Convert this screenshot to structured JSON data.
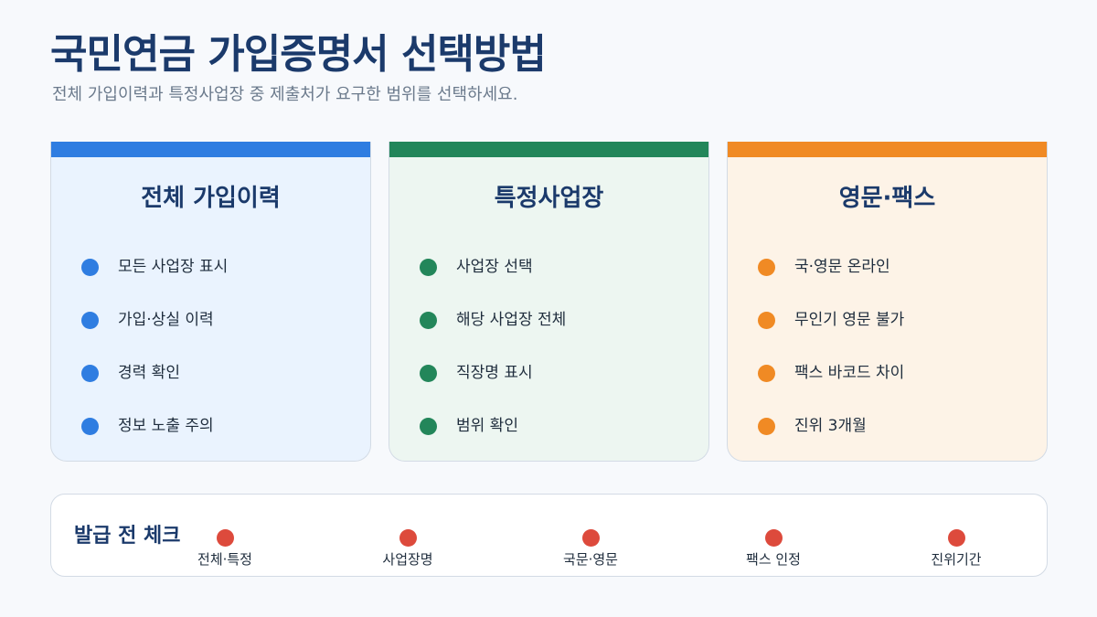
{
  "title": "국민연금 가입증명서 선택방법",
  "subtitle": "전체 가입이력과 특정사업장 중 제출처가 요구한 범위를 선택하세요.",
  "colors": {
    "blue": "#2f7de1",
    "green": "#23865a",
    "orange": "#f08a24",
    "red": "#dd4a3c",
    "blue_bg": "#eaf3fe",
    "green_bg": "#edf6f1",
    "orange_bg": "#fdf3e7"
  },
  "cards": [
    {
      "title": "전체 가입이력",
      "items": [
        "모든 사업장 표시",
        "가입·상실 이력",
        "경력 확인",
        "정보 노출 주의"
      ]
    },
    {
      "title": "특정사업장",
      "items": [
        "사업장 선택",
        "해당 사업장 전체",
        "직장명 표시",
        "범위 확인"
      ]
    },
    {
      "title": "영문·팩스",
      "items": [
        "국·영문 온라인",
        "무인기 영문 불가",
        "팩스 바코드 차이",
        "진위 3개월"
      ]
    }
  ],
  "checklist": {
    "title": "발급 전 체크",
    "steps": [
      "전체·특정",
      "사업장명",
      "국문·영문",
      "팩스 인정",
      "진위기간"
    ]
  }
}
